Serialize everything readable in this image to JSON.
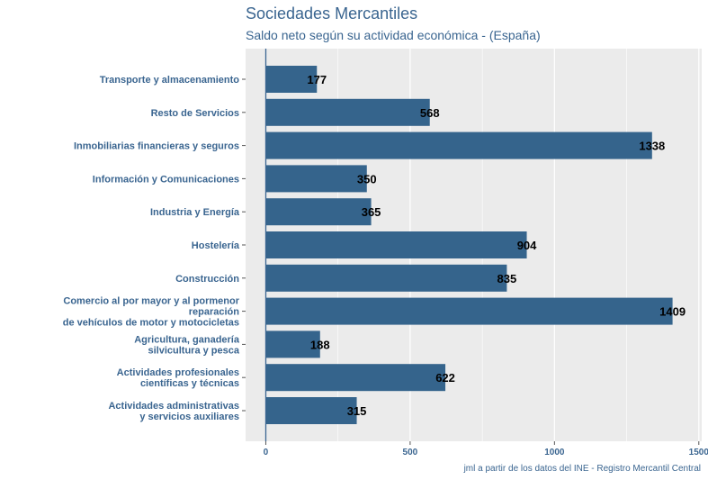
{
  "chart_data": {
    "type": "bar",
    "orientation": "horizontal",
    "title": "Sociedades Mercantiles",
    "subtitle": "Saldo neto según su actividad económica - (España)",
    "caption": "jml a partir de los datos del INE - Registro Mercantil Central",
    "categories": [
      [
        "Transporte y almacenamiento"
      ],
      [
        "Resto de Servicios"
      ],
      [
        "Inmobiliarias financieras y seguros"
      ],
      [
        "Información y Comunicaciones"
      ],
      [
        "Industria y Energía"
      ],
      [
        "Hostelería"
      ],
      [
        "Construcción"
      ],
      [
        "Comercio al por mayor y al pormenor",
        "reparación",
        "de vehículos de motor y motocicletas"
      ],
      [
        "Agricultura, ganadería",
        "silvicultura y pesca"
      ],
      [
        "Actividades profesionales",
        "científicas y técnicas"
      ],
      [
        "Actividades administrativas",
        "y servicios auxiliares"
      ]
    ],
    "values": [
      177,
      568,
      1338,
      350,
      365,
      904,
      835,
      1409,
      188,
      622,
      315
    ],
    "xlim": [
      -70,
      1510
    ],
    "xticks": [
      0,
      500,
      1000,
      1500
    ],
    "xtick_labels": [
      "0",
      "500",
      "1000",
      "1500"
    ],
    "grid": true,
    "colors": {
      "bar": "#35648c",
      "panel": "#ebebeb",
      "grid": "#ffffff",
      "text": "#3a6590",
      "zero_line": "#3a6590"
    }
  }
}
